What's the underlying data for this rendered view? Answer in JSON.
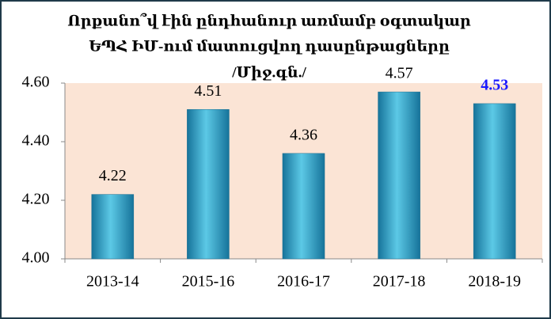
{
  "chart_data": {
    "type": "bar",
    "title": [
      "Որքանո՞վ էին ընդհանուր առմամբ օգտակար",
      "ԵՊՀ ԻՄ-ում մատուցվող դասընթացները",
      "/Միջ.գն./"
    ],
    "categories": [
      "2013-14",
      "2015-16",
      "2016-17",
      "2017-18",
      "2018-19"
    ],
    "values": [
      4.22,
      4.51,
      4.36,
      4.57,
      4.53
    ],
    "value_labels": [
      "4.22",
      "4.51",
      "4.36",
      "4.57",
      "4.53"
    ],
    "value_label_colors": [
      "#000000",
      "#000000",
      "#000000",
      "#000000",
      "#1a1aff"
    ],
    "color": "#2fa3c7",
    "ylim": [
      4.0,
      4.6
    ],
    "yticks": [
      {
        "value": 4.0,
        "label": "4.00"
      },
      {
        "value": 4.2,
        "label": "4.20"
      },
      {
        "value": 4.4,
        "label": "4.40"
      },
      {
        "value": 4.6,
        "label": "4.60"
      }
    ],
    "grid": false
  }
}
